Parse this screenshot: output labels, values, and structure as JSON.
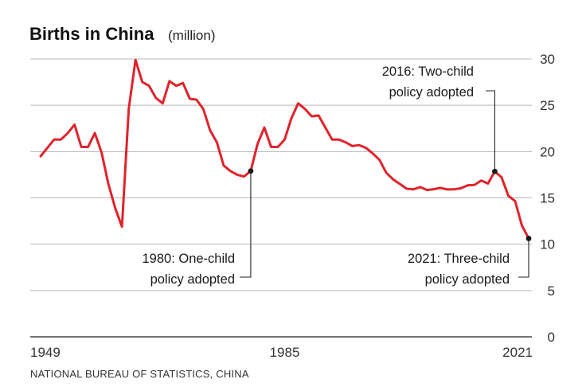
{
  "title": "Births in China",
  "title_unit": "(million)",
  "source": "NATIONAL BUREAU OF STATISTICS, CHINA",
  "colors": {
    "line": "#e0232b",
    "grid": "#b8b8b8",
    "text": "#1a1a1a"
  },
  "chart_data": {
    "type": "line",
    "title": "Births in China",
    "ylabel": "(million)",
    "xlabel": "",
    "xlim": [
      1949,
      2021
    ],
    "ylim": [
      0,
      30
    ],
    "x_ticks": [
      1949,
      1985,
      2021
    ],
    "y_ticks": [
      0,
      5,
      10,
      15,
      20,
      25,
      30
    ],
    "y_axis_side": "right",
    "grid": "horizontal",
    "legend": "none",
    "series": [
      {
        "x": [
          1949,
          1950,
          1951,
          1952,
          1953,
          1954,
          1955,
          1956,
          1957,
          1958,
          1959,
          1960,
          1961,
          1962,
          1963,
          1964,
          1965,
          1966,
          1967,
          1968,
          1969,
          1970,
          1971,
          1972,
          1973,
          1974,
          1975,
          1976,
          1977,
          1978,
          1979,
          1980,
          1981,
          1982,
          1983,
          1984,
          1985,
          1986,
          1987,
          1988,
          1989,
          1990,
          1991,
          1992,
          1993,
          1994,
          1995,
          1996,
          1997,
          1998,
          1999,
          2000,
          2001,
          2002,
          2003,
          2004,
          2005,
          2006,
          2007,
          2008,
          2009,
          2010,
          2011,
          2012,
          2013,
          2014,
          2015,
          2016,
          2017,
          2018,
          2019,
          2020,
          2021
        ],
        "values": [
          19.5,
          20.4,
          21.3,
          21.3,
          22.0,
          22.9,
          20.5,
          20.5,
          22.0,
          19.9,
          16.5,
          13.9,
          11.9,
          24.6,
          29.9,
          27.5,
          27.1,
          25.8,
          25.2,
          27.6,
          27.1,
          27.4,
          25.7,
          25.6,
          24.6,
          22.3,
          21.0,
          18.5,
          17.9,
          17.5,
          17.3,
          17.9,
          20.8,
          22.6,
          20.5,
          20.5,
          21.3,
          23.6,
          25.2,
          24.6,
          23.8,
          23.9,
          22.6,
          21.3,
          21.3,
          21.0,
          20.6,
          20.7,
          20.4,
          19.8,
          19.1,
          17.7,
          17.0,
          16.5,
          15.99,
          15.93,
          16.17,
          15.85,
          15.94,
          16.08,
          15.91,
          15.92,
          16.04,
          16.35,
          16.4,
          16.87,
          16.55,
          17.86,
          17.23,
          15.23,
          14.65,
          12.02,
          10.62
        ]
      }
    ],
    "annotations": [
      {
        "year": 1980,
        "value": 17.9,
        "lines": [
          "1980: One-child",
          "policy adopted"
        ]
      },
      {
        "year": 2016,
        "value": 17.86,
        "lines": [
          "2016: Two-child",
          "policy adopted"
        ]
      },
      {
        "year": 2021,
        "value": 10.62,
        "lines": [
          "2021: Three-child",
          "policy adopted"
        ]
      }
    ]
  }
}
